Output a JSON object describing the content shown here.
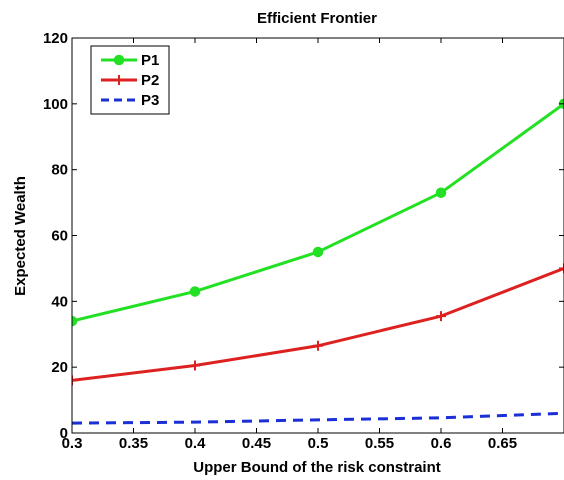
{
  "chart_data": {
    "type": "line",
    "title": "Efficient Frontier",
    "xlabel": "Upper Bound of the risk constraint",
    "ylabel": "Expected Wealth",
    "xlim": [
      0.3,
      0.7
    ],
    "ylim": [
      0,
      120
    ],
    "xticks": [
      0.3,
      0.35,
      0.4,
      0.45,
      0.5,
      0.55,
      0.6,
      0.65
    ],
    "xtick_labels": [
      "0.3",
      "0.35",
      "0.4",
      "0.45",
      "0.5",
      "0.55",
      "0.6",
      "0.65"
    ],
    "yticks": [
      0,
      20,
      40,
      60,
      80,
      100,
      120
    ],
    "ytick_labels": [
      "0",
      "20",
      "40",
      "60",
      "80",
      "100",
      "120"
    ],
    "grid": false,
    "legend_position": "top-left",
    "series": [
      {
        "name": "P1",
        "color": "#22e022",
        "line_style": "solid",
        "marker": "circle",
        "x": [
          0.3,
          0.4,
          0.5,
          0.6,
          0.7
        ],
        "y": [
          34,
          43,
          55,
          73,
          100
        ]
      },
      {
        "name": "P2",
        "color": "#dd2020",
        "line_style": "solid",
        "marker": "plus",
        "x": [
          0.3,
          0.4,
          0.5,
          0.6,
          0.7
        ],
        "y": [
          16,
          20.5,
          26.5,
          35.5,
          50
        ]
      },
      {
        "name": "P3",
        "color": "#1a2fd6",
        "line_style": "dashed",
        "marker": "none",
        "x": [
          0.3,
          0.4,
          0.5,
          0.6,
          0.7
        ],
        "y": [
          3,
          3.3,
          4,
          4.6,
          6
        ]
      }
    ]
  }
}
